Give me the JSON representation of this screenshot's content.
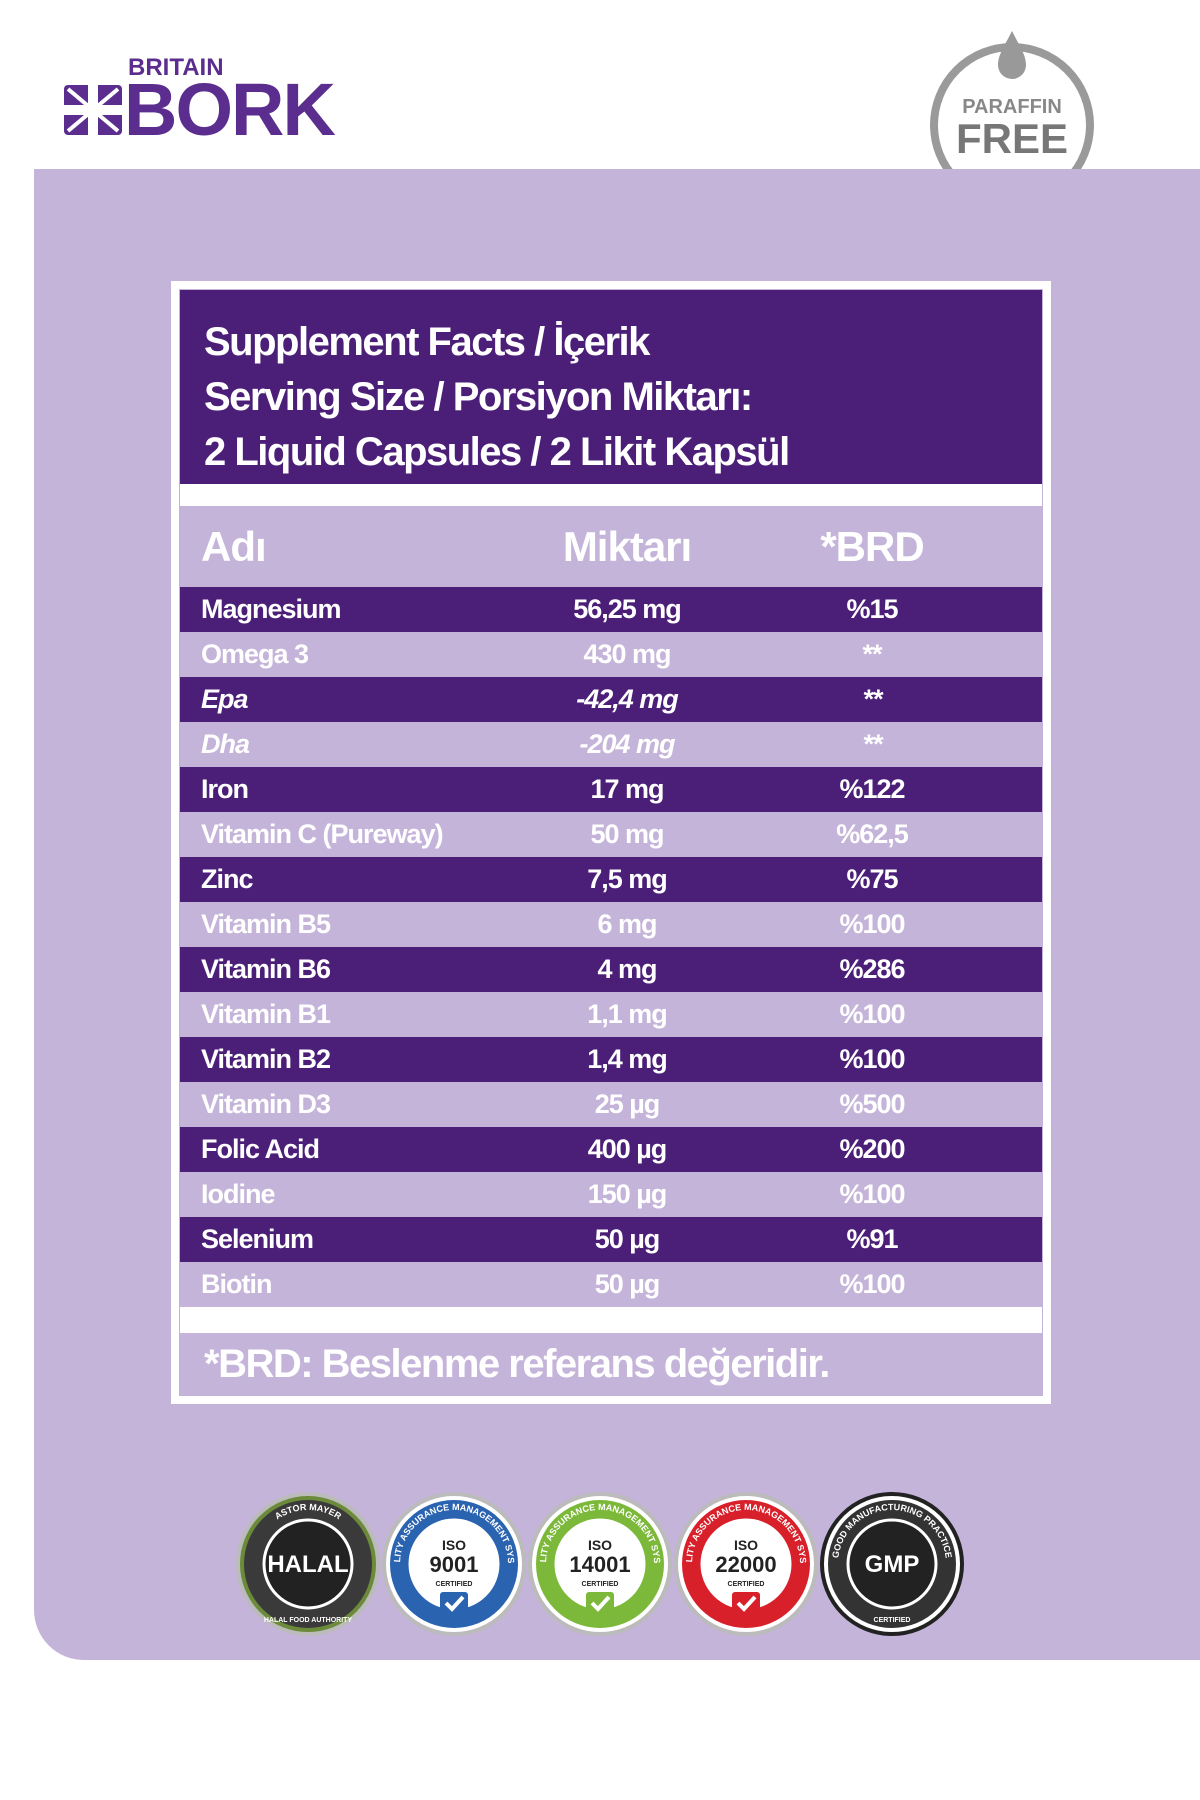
{
  "header": {
    "brand_top": "BRITAIN",
    "brand": "BORK",
    "badge": [
      "PARAFFIN",
      "FREE"
    ]
  },
  "facts": {
    "title_lines": [
      "Supplement Facts / İçerik",
      "Serving Size / Porsiyon Miktarı:",
      "2 Liquid Capsules / 2 Likit Kapsül"
    ],
    "columns": [
      "Adı",
      "Miktarı",
      "*BRD"
    ],
    "rows": [
      [
        "Magnesium",
        "56,25 mg",
        "%15"
      ],
      [
        "Omega 3",
        "430 mg",
        "**"
      ],
      [
        "Epa",
        "-42,4 mg",
        "**"
      ],
      [
        "Dha",
        "-204 mg",
        "**"
      ],
      [
        "Iron",
        "17 mg",
        "%122"
      ],
      [
        "Vitamin C (Pureway)",
        "50 mg",
        "%62,5"
      ],
      [
        "Zinc",
        "7,5 mg",
        "%75"
      ],
      [
        "Vitamin B5",
        "6 mg",
        "%100"
      ],
      [
        "Vitamin B6",
        "4 mg",
        "%286"
      ],
      [
        "Vitamin B1",
        "1,1 mg",
        "%100"
      ],
      [
        "Vitamin B2",
        "1,4 mg",
        "%100"
      ],
      [
        "Vitamin D3",
        "25 µg",
        "%500"
      ],
      [
        "Folic Acid",
        "400 µg",
        "%200"
      ],
      [
        "Iodine",
        "150 µg",
        "%100"
      ],
      [
        "Selenium",
        "50 µg",
        "%91"
      ],
      [
        "Biotin",
        "50 µg",
        "%100"
      ]
    ],
    "footnote": "*BRD: Beslenme referans değeridir."
  },
  "certifications": [
    {
      "top": "ASTOR MAYER",
      "main": "HALAL",
      "bottom": "HALAL FOOD AUTHORITY"
    },
    {
      "top": "QUALITY ASSURANCE MANAGEMENT SYSTEM",
      "main": "ISO",
      "code": "9001",
      "bottom": "CERTIFIED"
    },
    {
      "top": "QUALITY ASSURANCE MANAGEMENT SYSTEM",
      "main": "ISO",
      "code": "14001",
      "bottom": "CERTIFIED"
    },
    {
      "top": "QUALITY ASSURANCE MANAGEMENT SYSTEM",
      "main": "ISO",
      "code": "22000",
      "bottom": "CERTIFIED"
    },
    {
      "top": "GOOD MANUFACTURING PRACTICE",
      "main": "GMP",
      "bottom": "CERTIFIED"
    }
  ]
}
